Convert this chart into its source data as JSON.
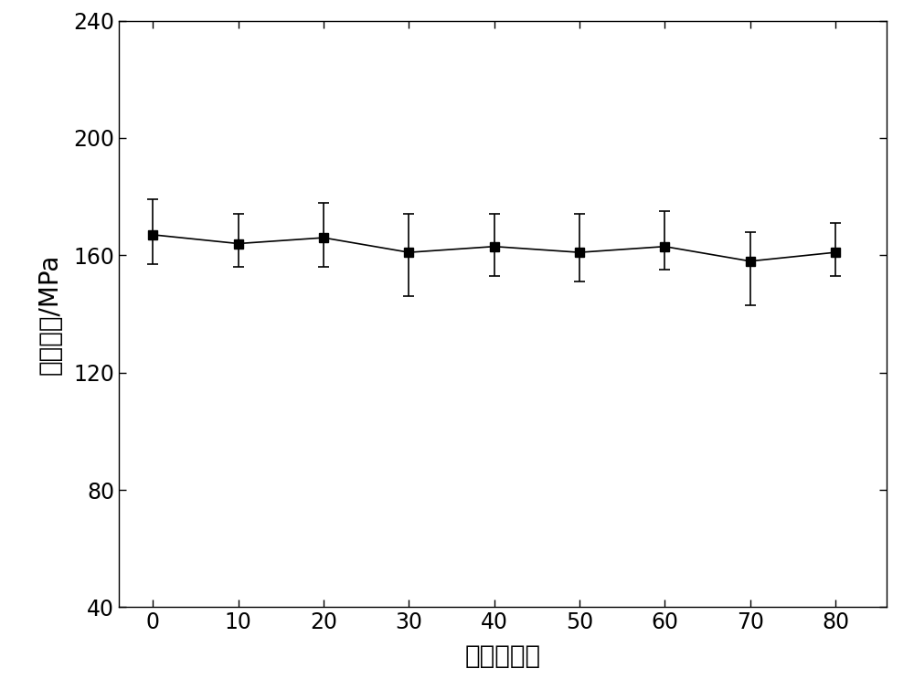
{
  "x": [
    0,
    10,
    20,
    30,
    40,
    50,
    60,
    70,
    80
  ],
  "y": [
    167,
    164,
    166,
    161,
    163,
    161,
    163,
    158,
    161
  ],
  "yerr_upper": [
    12,
    10,
    12,
    13,
    11,
    13,
    12,
    10,
    10
  ],
  "yerr_lower": [
    10,
    8,
    10,
    15,
    10,
    10,
    8,
    15,
    8
  ],
  "xlabel": "热循环次数",
  "ylabel": "剪切强度/MPa",
  "xlim": [
    -4,
    86
  ],
  "ylim": [
    40,
    240
  ],
  "yticks": [
    40,
    80,
    120,
    160,
    200,
    240
  ],
  "xticks": [
    0,
    10,
    20,
    30,
    40,
    50,
    60,
    70,
    80
  ],
  "line_color": "#000000",
  "marker": "s",
  "marker_color": "#000000",
  "marker_size": 7,
  "line_width": 1.2,
  "capsize": 4,
  "elinewidth": 1.2,
  "font_size_labels": 20,
  "font_size_ticks": 17,
  "bg_color": "#ffffff",
  "figure_bg": "#ffffff"
}
